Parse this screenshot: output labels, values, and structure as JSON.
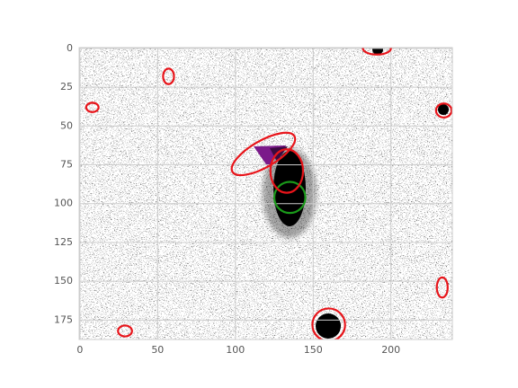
{
  "chart_data": {
    "type": "image",
    "xlim": [
      -0.5,
      239.5
    ],
    "ylim": [
      187.5,
      -0.5
    ],
    "xticks": [
      0,
      50,
      100,
      150,
      200
    ],
    "yticks": [
      0,
      25,
      50,
      75,
      100,
      125,
      150,
      175
    ],
    "grid": true,
    "ellipses": [
      {
        "cx": 135,
        "cy": 96,
        "width": 20,
        "height": 20,
        "angle": 0,
        "color": "#1a9a1a"
      },
      {
        "cx": 133,
        "cy": 79,
        "width": 21,
        "height": 28,
        "angle": 0,
        "color": "#e8141a"
      },
      {
        "cx": 118,
        "cy": 68,
        "width": 46,
        "height": 17,
        "angle": -30,
        "color": "#e8141a"
      },
      {
        "cx": 160,
        "cy": 178,
        "width": 21,
        "height": 21,
        "angle": 0,
        "color": "#e8141a"
      },
      {
        "cx": 57,
        "cy": 18,
        "width": 7,
        "height": 10,
        "angle": 0,
        "color": "#e8141a"
      },
      {
        "cx": 8,
        "cy": 38,
        "width": 8,
        "height": 6,
        "angle": 0,
        "color": "#e8141a"
      },
      {
        "cx": 191,
        "cy": 0,
        "width": 18,
        "height": 8,
        "angle": 0,
        "color": "#e8141a"
      },
      {
        "cx": 234,
        "cy": 40,
        "width": 10,
        "height": 9,
        "angle": 0,
        "color": "#e8141a"
      },
      {
        "cx": 233,
        "cy": 154,
        "width": 7,
        "height": 13,
        "angle": 0,
        "color": "#e8141a"
      },
      {
        "cx": 29,
        "cy": 182,
        "width": 9,
        "height": 7,
        "angle": 0,
        "color": "#e8141a"
      }
    ]
  }
}
